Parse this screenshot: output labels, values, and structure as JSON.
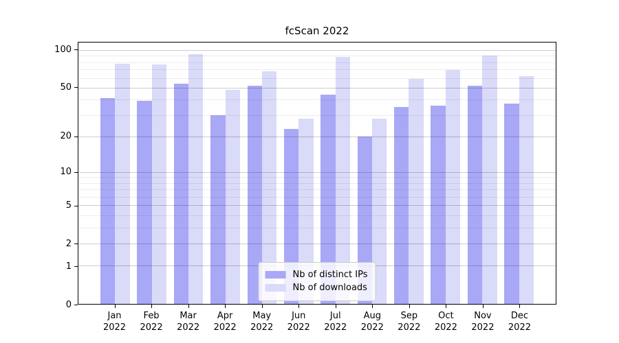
{
  "title": "fcScan 2022",
  "chart_data": {
    "type": "bar",
    "title": "fcScan 2022",
    "categories": [
      "Jan",
      "Feb",
      "Mar",
      "Apr",
      "May",
      "Jun",
      "Jul",
      "Aug",
      "Sep",
      "Oct",
      "Nov",
      "Dec"
    ],
    "category_year": "2022",
    "series": [
      {
        "name": "Nb of distinct IPs",
        "color": "#a8a8f7",
        "values": [
          41,
          39,
          54,
          30,
          52,
          23,
          44,
          20,
          35,
          36,
          52,
          37
        ]
      },
      {
        "name": "Nb of downloads",
        "color": "#dadaf9",
        "values": [
          78,
          77,
          93,
          48,
          68,
          28,
          88,
          28,
          59,
          69,
          91,
          62
        ]
      }
    ],
    "xlabel": "",
    "ylabel": "",
    "yscale": "log1p",
    "ylim": [
      0,
      115
    ],
    "yticks": [
      0,
      1,
      2,
      5,
      10,
      20,
      50,
      100
    ],
    "yticks_minor": [
      3,
      4,
      6,
      7,
      8,
      9,
      30,
      40,
      60,
      70,
      80,
      90
    ],
    "grid": "major and minor horizontal gridlines, drawn above bars",
    "legend_position": "lower center",
    "bar_group_width_fraction": 0.8
  },
  "colors": {
    "background": "#ffffff",
    "axis_frame": "#000000",
    "major_grid": "#cccccc",
    "minor_grid": "#ededed",
    "legend_border": "#cccccc",
    "legend_background": "rgba(255,255,255,0.8)"
  }
}
